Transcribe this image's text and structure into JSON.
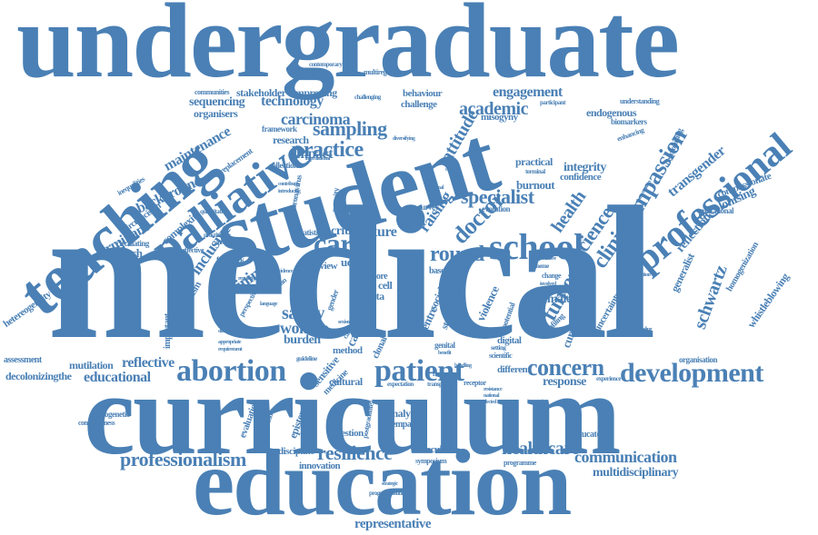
{
  "cloud": {
    "color": "#4a80b5",
    "words": {
      "undergraduate": "undergraduate",
      "medical": "medical",
      "curriculum": "curriculum",
      "education": "education",
      "student": "student",
      "teaching": "teaching",
      "palliative": "palliative",
      "professional": "professional",
      "school": "school",
      "abortion": "abortion",
      "patient": "patient",
      "development": "development",
      "concern": "concern",
      "professionalism": "professionalism",
      "resilience": "resilience",
      "healthcare": "healthcare",
      "communication": "communication",
      "multidisciplinary": "multidisciplinary",
      "representative": "representative",
      "educational": "educational",
      "reflective": "reflective",
      "mutilation": "mutilation",
      "decolonizingthe": "decolonizingthe",
      "assessment": "assessment",
      "practice": "practice",
      "sampling": "sampling",
      "carcinoma": "carcinoma",
      "technology": "technology",
      "research": "research",
      "care": "care",
      "round": "round",
      "specialist": "specialist",
      "doctor": "doctor",
      "attitude": "attitude",
      "academic": "academic",
      "engagement": "engagement",
      "compassion": "compassion",
      "clinical": "clinical",
      "science": "science",
      "health": "health",
      "tumor": "tumor",
      "schwartz": "schwartz",
      "reflection": "reflection",
      "transgender": "transgender",
      "decolonising": "decolonising",
      "whistleblowing": "whistleblowing",
      "homogenization": "homogenization",
      "hetereogeneity": "hetereogeneity",
      "determinant": "determinant",
      "background": "background",
      "maintenance": "maintenance",
      "inclusive": "inclusive",
      "training": "training",
      "approach": "approach",
      "safety": "safety",
      "woman": "woman",
      "burden": "burden",
      "impact": "impact",
      "future": "future",
      "critical": "critical",
      "raising": "raising",
      "sequencing": "sequencing",
      "organisers": "organisers",
      "stakeholder": "stakeholder",
      "improving": "improving",
      "communities": "communities",
      "challenge": "challenge",
      "behaviour": "behaviour",
      "misogyny": "misogyny",
      "endogenous": "endogenous",
      "biomarkers": "biomarkers",
      "understanding": "understanding",
      "compassionate": "compassionate",
      "mutational": "mutational",
      "generalist": "generalist",
      "integrity": "integrity",
      "burnout": "burnout",
      "confidence": "confidence",
      "practical": "practical",
      "female": "female",
      "curricula": "curricula",
      "uncertainty": "uncertainty",
      "response": "response",
      "educator": "educator",
      "organisation": "organisation",
      "different": "different",
      "digital": "digital",
      "analysis": "analysis",
      "empathy": "empathy",
      "question": "question",
      "discipline": "discipline",
      "innovation": "innovation",
      "molecular": "molecular",
      "symposium": "symposium",
      "programme": "programme",
      "cultural": "cultural",
      "sensitive": "sensitive",
      "method": "method",
      "medicine": "medicine",
      "epistemic": "epistemic",
      "evaluation": "evaluation",
      "phylogenetic": "phylogenetic",
      "consciousness": "consciousness",
      "important": "important",
      "pluralism": "pluralism",
      "cell": "cell",
      "data": "data",
      "cancer": "cancer",
      "social": "social",
      "violence": "violence",
      "centre": "centre",
      "study": "study",
      "clonal": "clonal",
      "uclms": "uclms",
      "review": "review",
      "based": "based",
      "multiregion": "multiregion",
      "contemporary": "contemporary",
      "challenging": "challenging",
      "framework": "framework",
      "collection": "collection",
      "replacement": "replacement",
      "complexity": "complexity",
      "circumcision": "circumcision",
      "inequalities": "inequalities",
      "circulating": "circulating",
      "effective": "effective",
      "feedback": "feedback",
      "statistic": "statistic",
      "london": "london",
      "survey": "survey",
      "evolution": "evolution",
      "participant": "participant",
      "enhancing": "enhancing",
      "decolonizing": "decolonizing",
      "genital": "genital",
      "potential": "potential",
      "profiling": "profiling",
      "change": "change",
      "model": "model",
      "receptor": "receptor",
      "scientific": "scientific",
      "setting": "setting",
      "human": "human",
      "prognostication": "prognostication",
      "postgraduate": "postgraduate",
      "gender": "gender",
      "more": "more",
      "year": "year",
      "group": "group",
      "focus": "focus",
      "lesbian": "lesbian",
      "perspective": "perspective",
      "university": "university",
      "practitioner": "practitioner",
      "diversity": "diversity",
      "international": "international",
      "quantitative": "quantitative",
      "generation": "generation",
      "guideline": "guideline",
      "expectation": "expectation",
      "transparent": "transparent",
      "terminal": "terminal",
      "theme": "theme",
      "involved": "involved",
      "initiative": "initiative",
      "mutation": "mutation",
      "credentialing": "credentialing",
      "consultation": "consultation",
      "experience": "experience",
      "interaction": "interaction",
      "strategic": "strategic",
      "regulator": "regulator",
      "caring": "caring",
      "benefit": "benefit",
      "appropriate": "appropriate",
      "requirement": "requirement",
      "difference": "difference",
      "language": "language",
      "sexism": "sexism",
      "evidence": "evidence",
      "barrier": "barrier",
      "coronavirus": "coronavirus",
      "contributes": "contributes",
      "introducing": "introducing",
      "diversifying": "diversifying",
      "handling": "handling",
      "personal": "personal",
      "intervention": "intervention",
      "resistance": "resistance",
      "national": "national",
      "clinic": "clinic",
      "primary": "primary",
      "selected": "selected"
    }
  }
}
